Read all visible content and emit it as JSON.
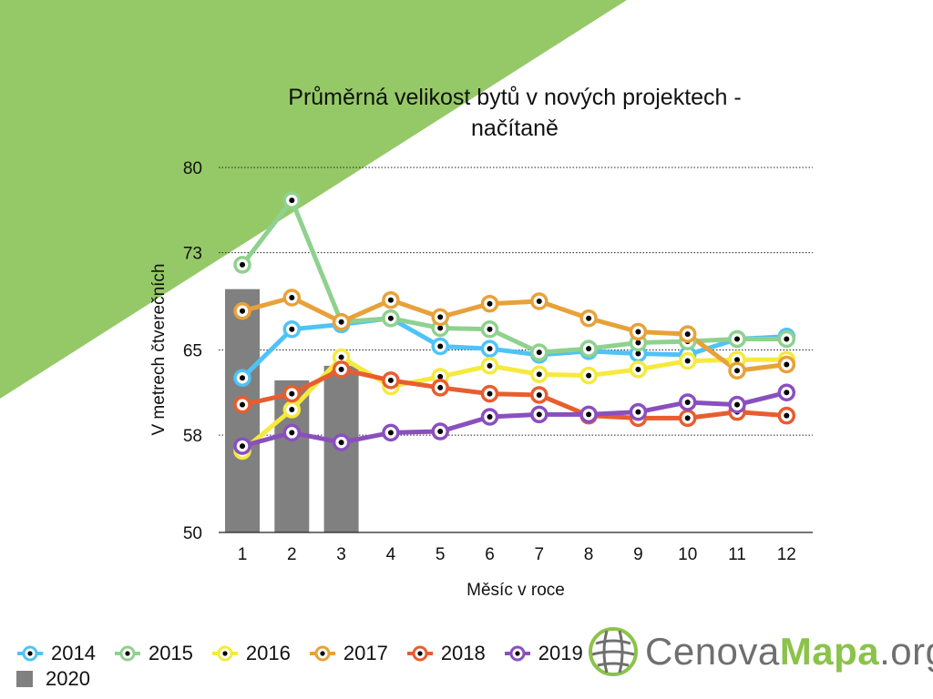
{
  "chart_data": {
    "type": "line",
    "title_lines": [
      "Průměrná velikost bytů v nových projektech -",
      "načítaně"
    ],
    "xlabel": "Měsíc v roce",
    "ylabel": "V metrech čtverečních",
    "categories": [
      "1",
      "2",
      "3",
      "4",
      "5",
      "6",
      "7",
      "8",
      "9",
      "10",
      "11",
      "12"
    ],
    "yticks": [
      "50",
      "58",
      "65",
      "73",
      "80"
    ],
    "ylim": [
      50,
      80
    ],
    "grid": "horizontal dotted",
    "legend_position": "bottom-left",
    "bar_series": {
      "name": "2020",
      "color": "#808080",
      "values": [
        70.0,
        62.5,
        63.7
      ]
    },
    "series": [
      {
        "name": "2014",
        "color": "#4fc3f7",
        "values": [
          62.7,
          66.7,
          67.1,
          67.6,
          65.3,
          65.1,
          64.6,
          64.9,
          64.7,
          64.6,
          65.9,
          66.1
        ]
      },
      {
        "name": "2015",
        "color": "#8fd18f",
        "values": [
          72.0,
          77.3,
          67.3,
          67.6,
          66.8,
          66.7,
          64.8,
          65.1,
          65.6,
          65.7,
          65.9,
          65.9
        ]
      },
      {
        "name": "2016",
        "color": "#f5ea3d",
        "values": [
          56.7,
          60.1,
          64.4,
          62.0,
          62.8,
          63.7,
          63.0,
          62.9,
          63.4,
          64.1,
          64.2,
          64.2
        ]
      },
      {
        "name": "2017",
        "color": "#e8a13a",
        "values": [
          68.2,
          69.3,
          67.3,
          69.1,
          67.7,
          68.8,
          69.0,
          67.6,
          66.5,
          66.3,
          63.3,
          63.8
        ]
      },
      {
        "name": "2018",
        "color": "#e85d2f",
        "values": [
          60.5,
          61.4,
          63.4,
          62.5,
          61.9,
          61.4,
          61.3,
          59.6,
          59.4,
          59.4,
          59.9,
          59.6
        ]
      },
      {
        "name": "2019",
        "color": "#8a4fbf",
        "values": [
          57.1,
          58.2,
          57.4,
          58.2,
          58.3,
          59.5,
          59.7,
          59.7,
          59.9,
          60.7,
          60.5,
          61.5
        ]
      }
    ]
  },
  "legend": {
    "items": [
      "2014",
      "2015",
      "2016",
      "2017",
      "2018",
      "2019"
    ],
    "bar_item": "2020"
  },
  "logo": {
    "part1": "Cenova",
    "part2": "Mapa",
    "part3": ".org"
  },
  "colors": {
    "background_triangle": "#95c967",
    "grid": "#222222",
    "marker_center": "#000000"
  }
}
